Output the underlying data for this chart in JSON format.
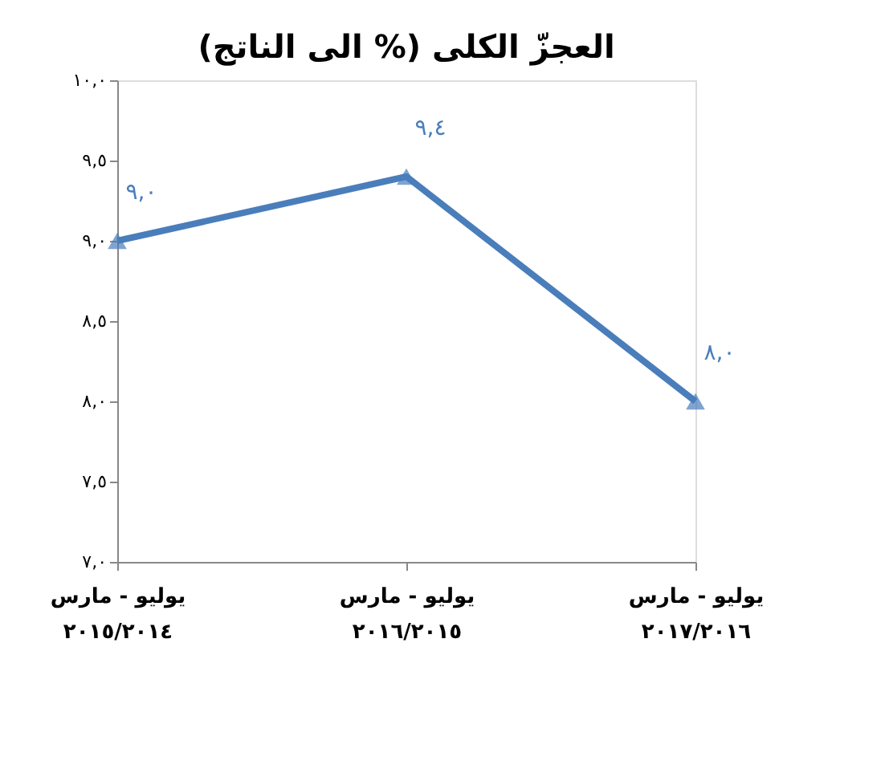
{
  "chart_data": {
    "type": "line",
    "title": "العجزّ الكلى (% الى الناتج)",
    "categories": [
      "يوليو - مارس\n٢٠١٥/٢٠١٤",
      "يوليو - مارس\n٢٠١٦/٢٠١٥",
      "يوليو - مارس\n٢٠١٧/٢٠١٦"
    ],
    "series": [
      {
        "color": "#4a7ebb",
        "values": [
          9.0,
          9.4,
          8.0
        ],
        "value_labels": [
          "٩,٠",
          "٩,٤",
          "٨,٠"
        ]
      }
    ],
    "ylim": [
      7.0,
      10.0
    ],
    "yticks": [
      {
        "value": 7.0,
        "label": "٧,٠"
      },
      {
        "value": 7.5,
        "label": "٧,٥"
      },
      {
        "value": 8.0,
        "label": "٨,٠"
      },
      {
        "value": 8.5,
        "label": "٨,٥"
      },
      {
        "value": 9.0,
        "label": "٩,٠"
      },
      {
        "value": 9.5,
        "label": "٩,٥"
      },
      {
        "value": 10.0,
        "label": "١٠,٠"
      }
    ],
    "marker": "triangle",
    "line_style": "solid",
    "grid": false
  }
}
